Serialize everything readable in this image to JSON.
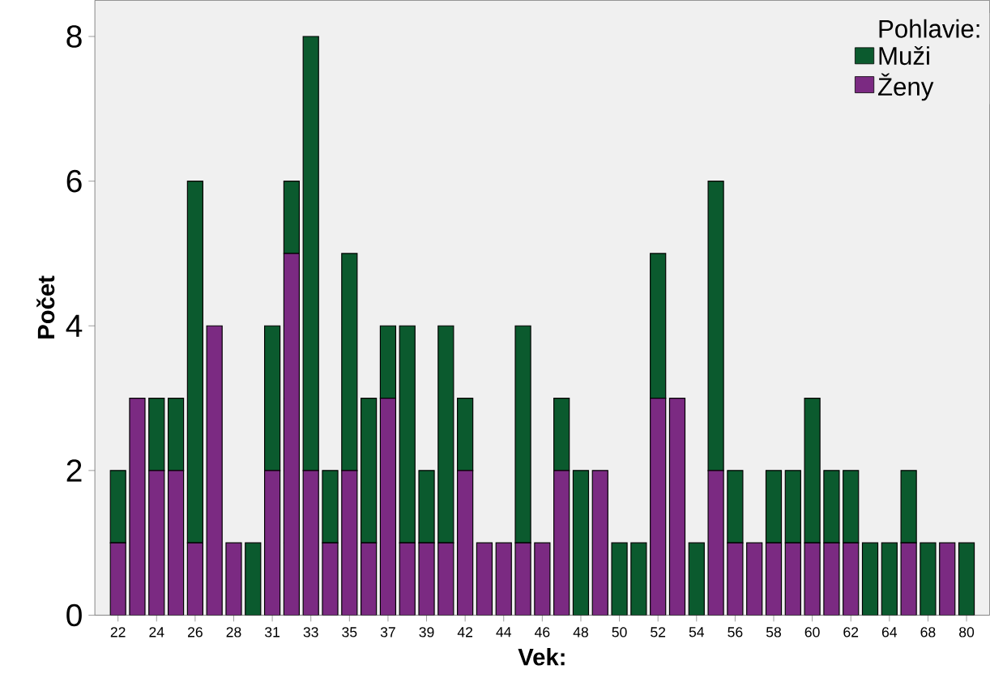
{
  "chart_data": {
    "type": "bar",
    "stacked": true,
    "xlabel": "Vek:",
    "ylabel": "Počet",
    "legend_title": "Pohlavie:",
    "legend": "top right",
    "categories": [
      "22",
      null,
      "24",
      null,
      "26",
      null,
      "28",
      null,
      "31",
      null,
      "33",
      null,
      "35",
      null,
      "37",
      null,
      "39",
      null,
      "42",
      null,
      "44",
      null,
      "46",
      null,
      "48",
      null,
      "50",
      null,
      "52",
      null,
      "54",
      null,
      "56",
      null,
      "58",
      null,
      "60",
      null,
      "62",
      null,
      "64",
      null,
      "68",
      null,
      "80"
    ],
    "ylim": [
      0,
      8.5
    ],
    "yticks": [
      0,
      2,
      4,
      6,
      8
    ],
    "series": [
      {
        "name": "Ženy",
        "color": "#7b2a82",
        "values": [
          1,
          3,
          2,
          2,
          1,
          4,
          1,
          0,
          2,
          5,
          2,
          1,
          2,
          1,
          3,
          1,
          1,
          1,
          2,
          1,
          1,
          1,
          1,
          2,
          0,
          2,
          0,
          0,
          3,
          3,
          0,
          2,
          1,
          1,
          1,
          1,
          1,
          1,
          1,
          0,
          0,
          1,
          0,
          1,
          0
        ]
      },
      {
        "name": "Muži",
        "color": "#0b5a2e",
        "values": [
          1,
          0,
          1,
          1,
          5,
          0,
          0,
          1,
          2,
          1,
          6,
          1,
          3,
          2,
          1,
          3,
          1,
          3,
          1,
          0,
          0,
          3,
          0,
          1,
          2,
          0,
          1,
          1,
          2,
          0,
          1,
          4,
          1,
          0,
          1,
          1,
          2,
          1,
          1,
          1,
          1,
          1,
          1,
          0,
          1
        ]
      }
    ]
  }
}
